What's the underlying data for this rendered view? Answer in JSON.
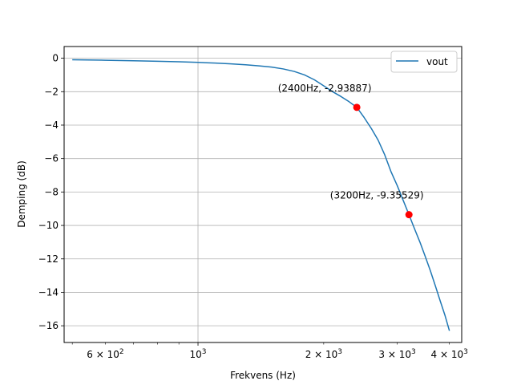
{
  "chart_data": {
    "type": "line",
    "xscale": "log",
    "xlabel": "Frekvens (Hz)",
    "ylabel": "Demping (dB)",
    "xlim": [
      478,
      4280
    ],
    "ylim": [
      -17.0,
      0.7
    ],
    "grid": true,
    "legend_position": "upper right",
    "series": [
      {
        "name": "vout",
        "color": "#1f77b4",
        "x": [
          500,
          600,
          700,
          800,
          900,
          1000,
          1100,
          1200,
          1300,
          1400,
          1500,
          1600,
          1700,
          1800,
          1900,
          2000,
          2100,
          2200,
          2300,
          2400,
          2500,
          2600,
          2700,
          2800,
          2900,
          3000,
          3100,
          3200,
          3300,
          3400,
          3500,
          3600,
          3700,
          3800,
          3900,
          4000
        ],
        "y": [
          -0.09,
          -0.12,
          -0.15,
          -0.18,
          -0.21,
          -0.25,
          -0.29,
          -0.34,
          -0.39,
          -0.46,
          -0.53,
          -0.64,
          -0.79,
          -1.0,
          -1.29,
          -1.65,
          -2.0,
          -2.29,
          -2.6,
          -2.93887,
          -3.55,
          -4.2,
          -4.9,
          -5.78,
          -6.8,
          -7.62,
          -8.5,
          -9.35529,
          -10.2,
          -11.0,
          -11.85,
          -12.7,
          -13.6,
          -14.5,
          -15.35,
          -16.3
        ]
      }
    ],
    "markers": [
      {
        "x": 2400,
        "y": -2.93887,
        "label": "(2400Hz, -2.93887)",
        "color": "#ff0000"
      },
      {
        "x": 3200,
        "y": -9.35529,
        "label": "(3200Hz, -9.35529)",
        "color": "#ff0000"
      }
    ],
    "xticks_major": [
      {
        "value": 1000,
        "label": "10",
        "exp": "3"
      }
    ],
    "xticks_minor_labeled": [
      {
        "value": 600,
        "mant": "6",
        "label": "10",
        "exp": "2"
      },
      {
        "value": 2000,
        "mant": "2",
        "label": "10",
        "exp": "3"
      },
      {
        "value": 3000,
        "mant": "3",
        "label": "10",
        "exp": "3"
      },
      {
        "value": 4000,
        "mant": "4",
        "label": "10",
        "exp": "3"
      }
    ],
    "xticks_minor_unlabeled": [
      500,
      700,
      800,
      900
    ],
    "yticks": [
      0,
      -2,
      -4,
      -6,
      -8,
      -10,
      -12,
      -14,
      -16
    ]
  }
}
